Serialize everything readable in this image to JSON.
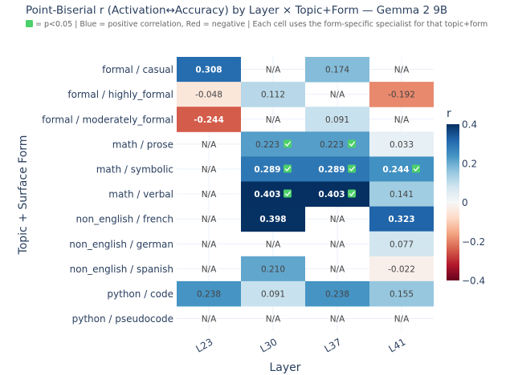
{
  "chart_data": {
    "type": "heatmap",
    "title": "Point-Biserial r (Activation↔Accuracy) by Layer × Topic+Form — Gemma 2 9B",
    "subtitle": "= p<0.05  |  Blue = positive correlation, Red = negative  |  Each cell uses the form-specific specialist for that topic+form",
    "xlabel": "Layer",
    "ylabel": "Topic + Surface Form",
    "x": [
      "L23",
      "L30",
      "L37",
      "L41"
    ],
    "y": [
      "formal / casual",
      "formal / highly_formal",
      "formal / moderately_formal",
      "math / prose",
      "math / symbolic",
      "math / verbal",
      "non_english / french",
      "non_english / german",
      "non_english / spanish",
      "python / code",
      "python / pseudocode"
    ],
    "z": [
      [
        0.308,
        null,
        0.174,
        null
      ],
      [
        -0.048,
        0.112,
        null,
        -0.192
      ],
      [
        -0.244,
        null,
        0.091,
        null
      ],
      [
        null,
        0.223,
        0.223,
        0.033
      ],
      [
        null,
        0.289,
        0.289,
        0.244
      ],
      [
        null,
        0.403,
        0.403,
        0.141
      ],
      [
        null,
        0.398,
        null,
        0.323
      ],
      [
        null,
        null,
        null,
        0.077
      ],
      [
        null,
        0.21,
        null,
        -0.022
      ],
      [
        0.238,
        0.091,
        0.238,
        0.155
      ],
      [
        null,
        null,
        null,
        null
      ]
    ],
    "significant": [
      [
        false,
        false,
        false,
        false
      ],
      [
        false,
        false,
        false,
        false
      ],
      [
        false,
        false,
        false,
        false
      ],
      [
        false,
        true,
        true,
        false
      ],
      [
        false,
        true,
        true,
        true
      ],
      [
        false,
        true,
        true,
        false
      ],
      [
        false,
        false,
        false,
        false
      ],
      [
        false,
        false,
        false,
        false
      ],
      [
        false,
        false,
        false,
        false
      ],
      [
        false,
        false,
        false,
        false
      ],
      [
        false,
        false,
        false,
        false
      ]
    ],
    "na_label": "N/A",
    "zlim": [
      -0.4,
      0.4
    ],
    "colorbar": {
      "title": "r",
      "ticks": [
        0.4,
        0.2,
        0,
        -0.2,
        -0.4
      ],
      "tick_labels": [
        "0.4",
        "0.2",
        "0",
        "−0.2",
        "−0.4"
      ]
    },
    "colorscale": [
      "#67001f",
      "#b2182b",
      "#d6604d",
      "#f4a582",
      "#fddbc7",
      "#f7f7f7",
      "#d1e5f0",
      "#92c5de",
      "#4393c3",
      "#2166ac",
      "#053061"
    ],
    "check_color": "#4cd06a"
  }
}
